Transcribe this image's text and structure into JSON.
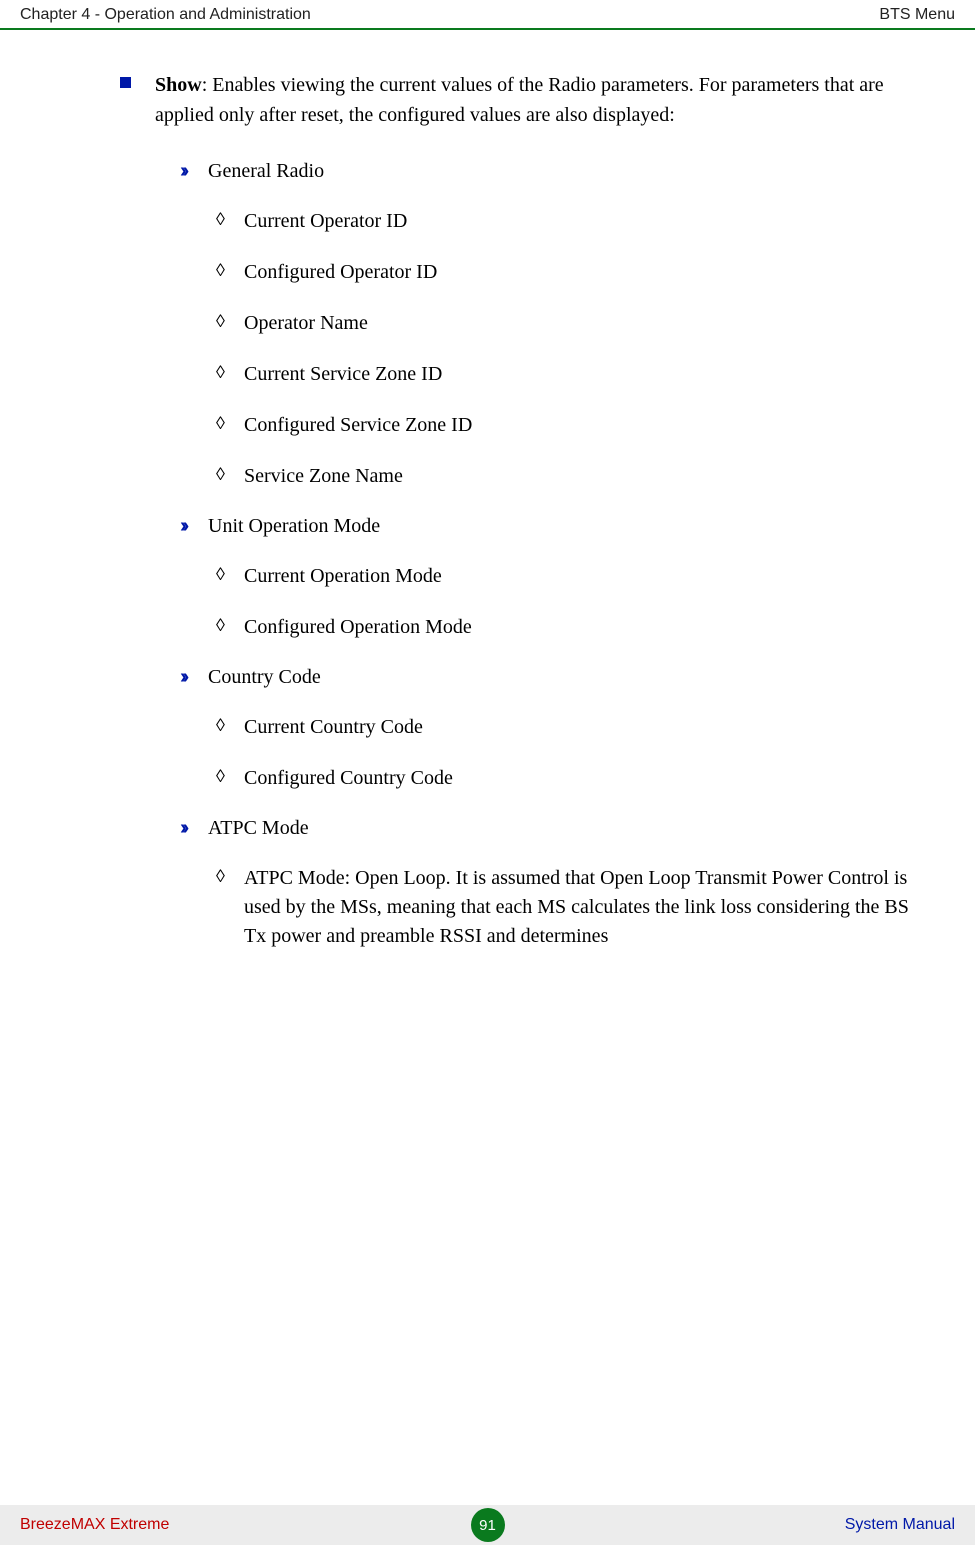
{
  "header": {
    "left": "Chapter 4 - Operation and Administration",
    "right": "BTS Menu"
  },
  "main": {
    "show_label": "Show",
    "show_text": ": Enables viewing the current values of the Radio parameters. For parameters that are applied only after reset, the configured values are also displayed:",
    "groups": [
      {
        "title": "General Radio",
        "items": [
          "Current Operator ID",
          "Configured Operator ID",
          "Operator Name",
          "Current Service Zone ID",
          "Configured Service Zone ID",
          "Service Zone Name"
        ]
      },
      {
        "title": "Unit Operation Mode",
        "items": [
          "Current Operation Mode",
          "Configured Operation Mode"
        ]
      },
      {
        "title": "Country Code",
        "items": [
          "Current Country Code",
          "Configured Country Code"
        ]
      },
      {
        "title": "ATPC Mode",
        "items": [
          "ATPC Mode: Open Loop. It is assumed that Open Loop Transmit Power Control is used by the MSs, meaning that each MS calculates the link loss considering the BS Tx power and preamble RSSI and determines"
        ]
      }
    ]
  },
  "footer": {
    "left": "BreezeMAX Extreme",
    "page": "91",
    "right": "System Manual"
  }
}
